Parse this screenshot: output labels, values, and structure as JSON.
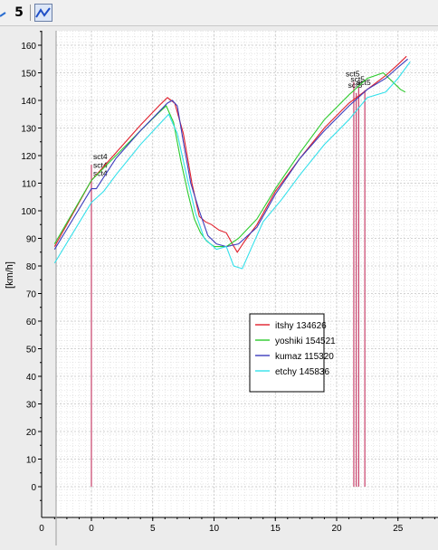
{
  "toolbar": {
    "series_button_label": "5",
    "buttons": [
      "partial-icon",
      "series-5-icon",
      "line-chart-icon"
    ]
  },
  "chart_data": {
    "type": "line",
    "ylabel": "[km/h]",
    "xlabel": "",
    "xlim": [
      0,
      27.8
    ],
    "ylim": [
      -8,
      166
    ],
    "x_ticks": [
      0,
      5,
      10,
      15,
      20,
      25
    ],
    "x_tick_labels": [
      "0",
      "5",
      "10",
      "15",
      "20",
      "25"
    ],
    "y_ticks": [
      0,
      10,
      20,
      30,
      40,
      50,
      60,
      70,
      80,
      90,
      100,
      110,
      120,
      130,
      140,
      150,
      160
    ],
    "y_tick_labels": [
      "0",
      "10",
      "20",
      "30",
      "40",
      "50",
      "60",
      "70",
      "80",
      "90",
      "100",
      "110",
      "120",
      "130",
      "140",
      "150",
      "160"
    ],
    "grid": true,
    "legend_position": "lower-middle",
    "series": [
      {
        "name": "itshy 134626",
        "color": "#e0202c",
        "x": [
          -3,
          0,
          2,
          4,
          5.5,
          6.2,
          6.8,
          7.5,
          8.2,
          8.8,
          9.3,
          9.8,
          10.4,
          11.0,
          11.5,
          11.9,
          12.5,
          13.5,
          15,
          17,
          19,
          21,
          22.5,
          24,
          25,
          25.7
        ],
        "y": [
          87,
          111,
          121,
          131,
          138,
          141,
          139,
          128,
          110,
          98,
          96,
          95,
          93,
          92,
          88,
          85,
          89,
          95,
          107,
          119,
          130,
          139,
          144,
          149,
          153,
          156
        ]
      },
      {
        "name": "yoshiki 154521",
        "color": "#2ccb2c",
        "x": [
          -3,
          0,
          2,
          4,
          5.6,
          6.1,
          6.7,
          7.3,
          7.9,
          8.4,
          8.9,
          9.4,
          10.0,
          11,
          12,
          13.5,
          15,
          17,
          19,
          21,
          22.5,
          23.8,
          24.5,
          25.2,
          25.6
        ],
        "y": [
          88,
          111,
          120,
          129,
          136,
          138,
          132,
          118,
          106,
          97,
          92,
          89,
          87,
          87,
          90,
          97,
          108,
          121,
          133,
          142,
          148,
          150,
          147,
          144,
          143
        ]
      },
      {
        "name": "kumaz 115320",
        "color": "#3c3cbd",
        "x": [
          -3,
          0,
          0.4,
          2,
          4,
          6.2,
          6.6,
          7.0,
          7.5,
          8.1,
          8.8,
          9.5,
          10.2,
          11,
          12,
          13.5,
          15,
          17,
          19,
          21,
          22.5,
          24,
          25,
          25.8
        ],
        "y": [
          86,
          108,
          108,
          119,
          129,
          139,
          140,
          138,
          125,
          110,
          100,
          91,
          88,
          87,
          88,
          94,
          106,
          119,
          129,
          138,
          144,
          148,
          152,
          155
        ]
      },
      {
        "name": "etchy 145836",
        "color": "#33e0ea",
        "x": [
          -3,
          0,
          1,
          2,
          4,
          6.3,
          7.0,
          7.8,
          8.5,
          9.2,
          10.2,
          11,
          11.6,
          12.3,
          13.0,
          14,
          15.5,
          17,
          19,
          21,
          22.5,
          24,
          25,
          26
        ],
        "y": [
          81,
          103,
          107,
          113,
          124,
          135,
          128,
          112,
          99,
          90,
          86,
          87,
          80,
          79,
          86,
          96,
          104,
          113,
          124,
          133,
          141,
          143,
          148,
          154
        ]
      }
    ],
    "markers": [
      {
        "label": "sct4",
        "x": 0.0,
        "y": 118,
        "color": "#c8406a"
      },
      {
        "label": "sct4",
        "x": 0.0,
        "y": 115,
        "color": "#c8406a"
      },
      {
        "label": "sct4",
        "x": 0.0,
        "y": 112,
        "color": "#c8406a"
      },
      {
        "label": "sct5",
        "x": 21.4,
        "y": 148,
        "color": "#c8406a"
      },
      {
        "label": "sct5",
        "x": 21.8,
        "y": 146,
        "color": "#c8406a"
      },
      {
        "label": "sct5",
        "x": 22.3,
        "y": 145,
        "color": "#c8406a"
      },
      {
        "label": "sct5",
        "x": 21.6,
        "y": 144,
        "color": "#c8406a"
      }
    ],
    "legend": [
      "itshy 134626",
      "yoshiki 154521",
      "kumaz 115320",
      "etchy 145836"
    ]
  }
}
